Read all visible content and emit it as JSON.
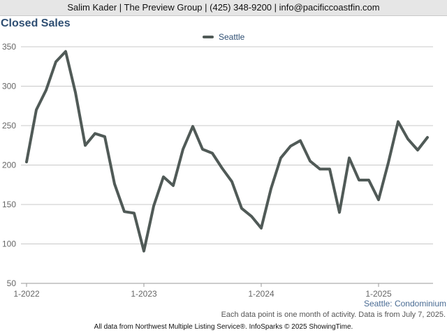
{
  "header": {
    "contact": "Salim Kader | The Preview Group | (425) 348-9200 | info@pacificcoastfin.com"
  },
  "colors": {
    "series": "#505a57",
    "title": "#2f4f73",
    "grid": "#c8c8c8"
  },
  "chart_data": {
    "type": "line",
    "title": "Closed Sales",
    "xlabel": "",
    "ylabel": "",
    "ylim": [
      50,
      350
    ],
    "yticks": [
      50,
      100,
      150,
      200,
      250,
      300,
      350
    ],
    "xticks": [
      {
        "index": 0,
        "label": "1-2022"
      },
      {
        "index": 12,
        "label": "1-2023"
      },
      {
        "index": 24,
        "label": "1-2024"
      },
      {
        "index": 36,
        "label": "1-2025"
      }
    ],
    "grid": true,
    "legend_position": "top",
    "series": [
      {
        "name": "Seattle",
        "values": [
          204,
          270,
          295,
          331,
          344,
          292,
          225,
          240,
          236,
          176,
          141,
          139,
          91,
          148,
          185,
          174,
          220,
          249,
          220,
          215,
          196,
          179,
          145,
          135,
          120,
          170,
          209,
          224,
          231,
          205,
          195,
          195,
          140,
          209,
          181,
          181,
          156,
          203,
          255,
          233,
          219,
          235
        ]
      }
    ]
  },
  "series_tag": "Seattle: Condominium",
  "note": "Each data point is one month of activity. Data is from July 7, 2025.",
  "footer": "All data from Northwest Multiple Listing Service®. InfoSparks © 2025 ShowingTime."
}
